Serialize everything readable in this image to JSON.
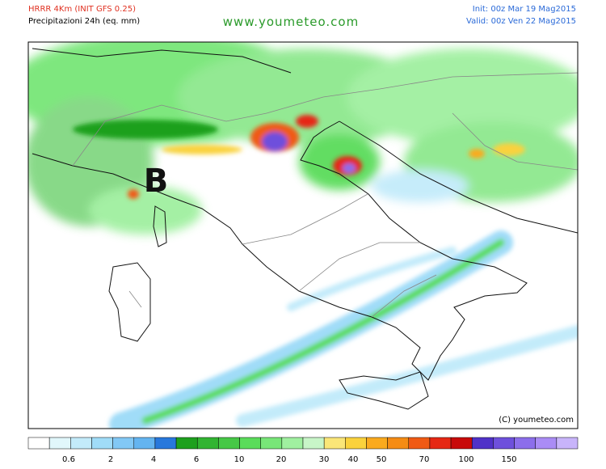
{
  "header": {
    "model": "HRRR 4Km (INIT GFS 0.25)",
    "product": "Precipitazioni 24h (eq. mm)",
    "site": "www.youmeteo.com",
    "init": "Init: 00z Mar 19 Mag2015",
    "valid": "Valid: 00z Ven 22 Mag2015"
  },
  "map": {
    "pressure_label": "B",
    "copyright": "(C) youmeteo.com"
  },
  "legend": {
    "colors": [
      "#ffffff",
      "#e1f7fb",
      "#c3ebfa",
      "#a0dcf8",
      "#82c8f5",
      "#64b4f0",
      "#2878dc",
      "#1ea01e",
      "#32b432",
      "#46c846",
      "#5adc5a",
      "#78e678",
      "#a0f0a0",
      "#c8f5c8",
      "#fae678",
      "#fad23c",
      "#faaa1e",
      "#f58c14",
      "#f05a14",
      "#e62814",
      "#c80a0a",
      "#5032c8",
      "#6e50dc",
      "#8c6eeb",
      "#aa8cf5",
      "#c8b4fa"
    ],
    "labels": [
      "0.6",
      "2",
      "4",
      "6",
      "10",
      "20",
      "30",
      "40",
      "50",
      "70",
      "100",
      "150"
    ]
  }
}
